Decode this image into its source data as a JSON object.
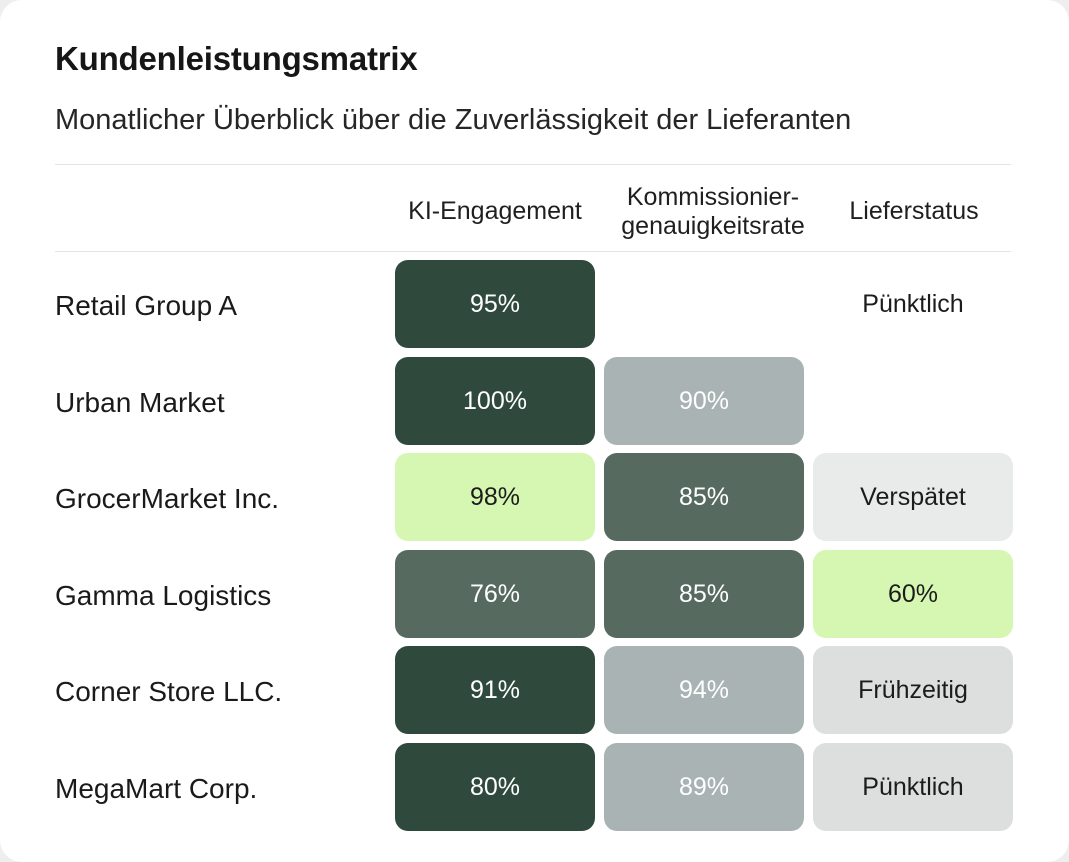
{
  "title": "Kundenleistungsmatrix",
  "subtitle": "Monatlicher Überblick über die Zuverlässigkeit der Lieferanten",
  "columns": [
    "KI-Engagement",
    "Kommissionier-\ngenauigkeitsrate",
    "Lieferstatus"
  ],
  "colors": {
    "dark": "#2f4a3c",
    "mid": "#566a60",
    "grey": "#a9b3b4",
    "light": "#e9eaea",
    "lightgrey": "#dcdfdd",
    "lime": "#d6f7b2"
  },
  "chart_data": {
    "type": "heatmap",
    "title": "Kundenleistungsmatrix",
    "subtitle": "Monatlicher Überblick über die Zuverlässigkeit der Lieferanten",
    "columns": [
      "KI-Engagement",
      "Kommissionier-genauigkeitsrate",
      "Lieferstatus"
    ],
    "rows": [
      {
        "label": "Retail Group A",
        "cells": [
          {
            "text": "95%",
            "value": 95,
            "shade": "dark"
          },
          {
            "text": "",
            "value": null,
            "shade": "empty"
          },
          {
            "text": "Pünktlich",
            "value": null,
            "shade": "empty"
          }
        ]
      },
      {
        "label": "Urban Market",
        "cells": [
          {
            "text": "100%",
            "value": 100,
            "shade": "dark"
          },
          {
            "text": "90%",
            "value": 90,
            "shade": "grey"
          },
          {
            "text": "",
            "value": null,
            "shade": "empty"
          }
        ]
      },
      {
        "label": "GrocerMarket Inc.",
        "cells": [
          {
            "text": "98%",
            "value": 98,
            "shade": "lime"
          },
          {
            "text": "85%",
            "value": 85,
            "shade": "mid"
          },
          {
            "text": "Verspätet",
            "value": null,
            "shade": "light"
          }
        ]
      },
      {
        "label": "Gamma Logistics",
        "cells": [
          {
            "text": "76%",
            "value": 76,
            "shade": "mid"
          },
          {
            "text": "85%",
            "value": 85,
            "shade": "mid"
          },
          {
            "text": "60%",
            "value": 60,
            "shade": "lime"
          }
        ]
      },
      {
        "label": "Corner Store LLC.",
        "cells": [
          {
            "text": "91%",
            "value": 91,
            "shade": "dark"
          },
          {
            "text": "94%",
            "value": 94,
            "shade": "grey"
          },
          {
            "text": "Frühzeitig",
            "value": null,
            "shade": "lgrey"
          }
        ]
      },
      {
        "label": "MegaMart Corp.",
        "cells": [
          {
            "text": "80%",
            "value": 80,
            "shade": "dark"
          },
          {
            "text": "89%",
            "value": 89,
            "shade": "grey"
          },
          {
            "text": "Pünktlich",
            "value": null,
            "shade": "lgrey"
          }
        ]
      }
    ]
  }
}
